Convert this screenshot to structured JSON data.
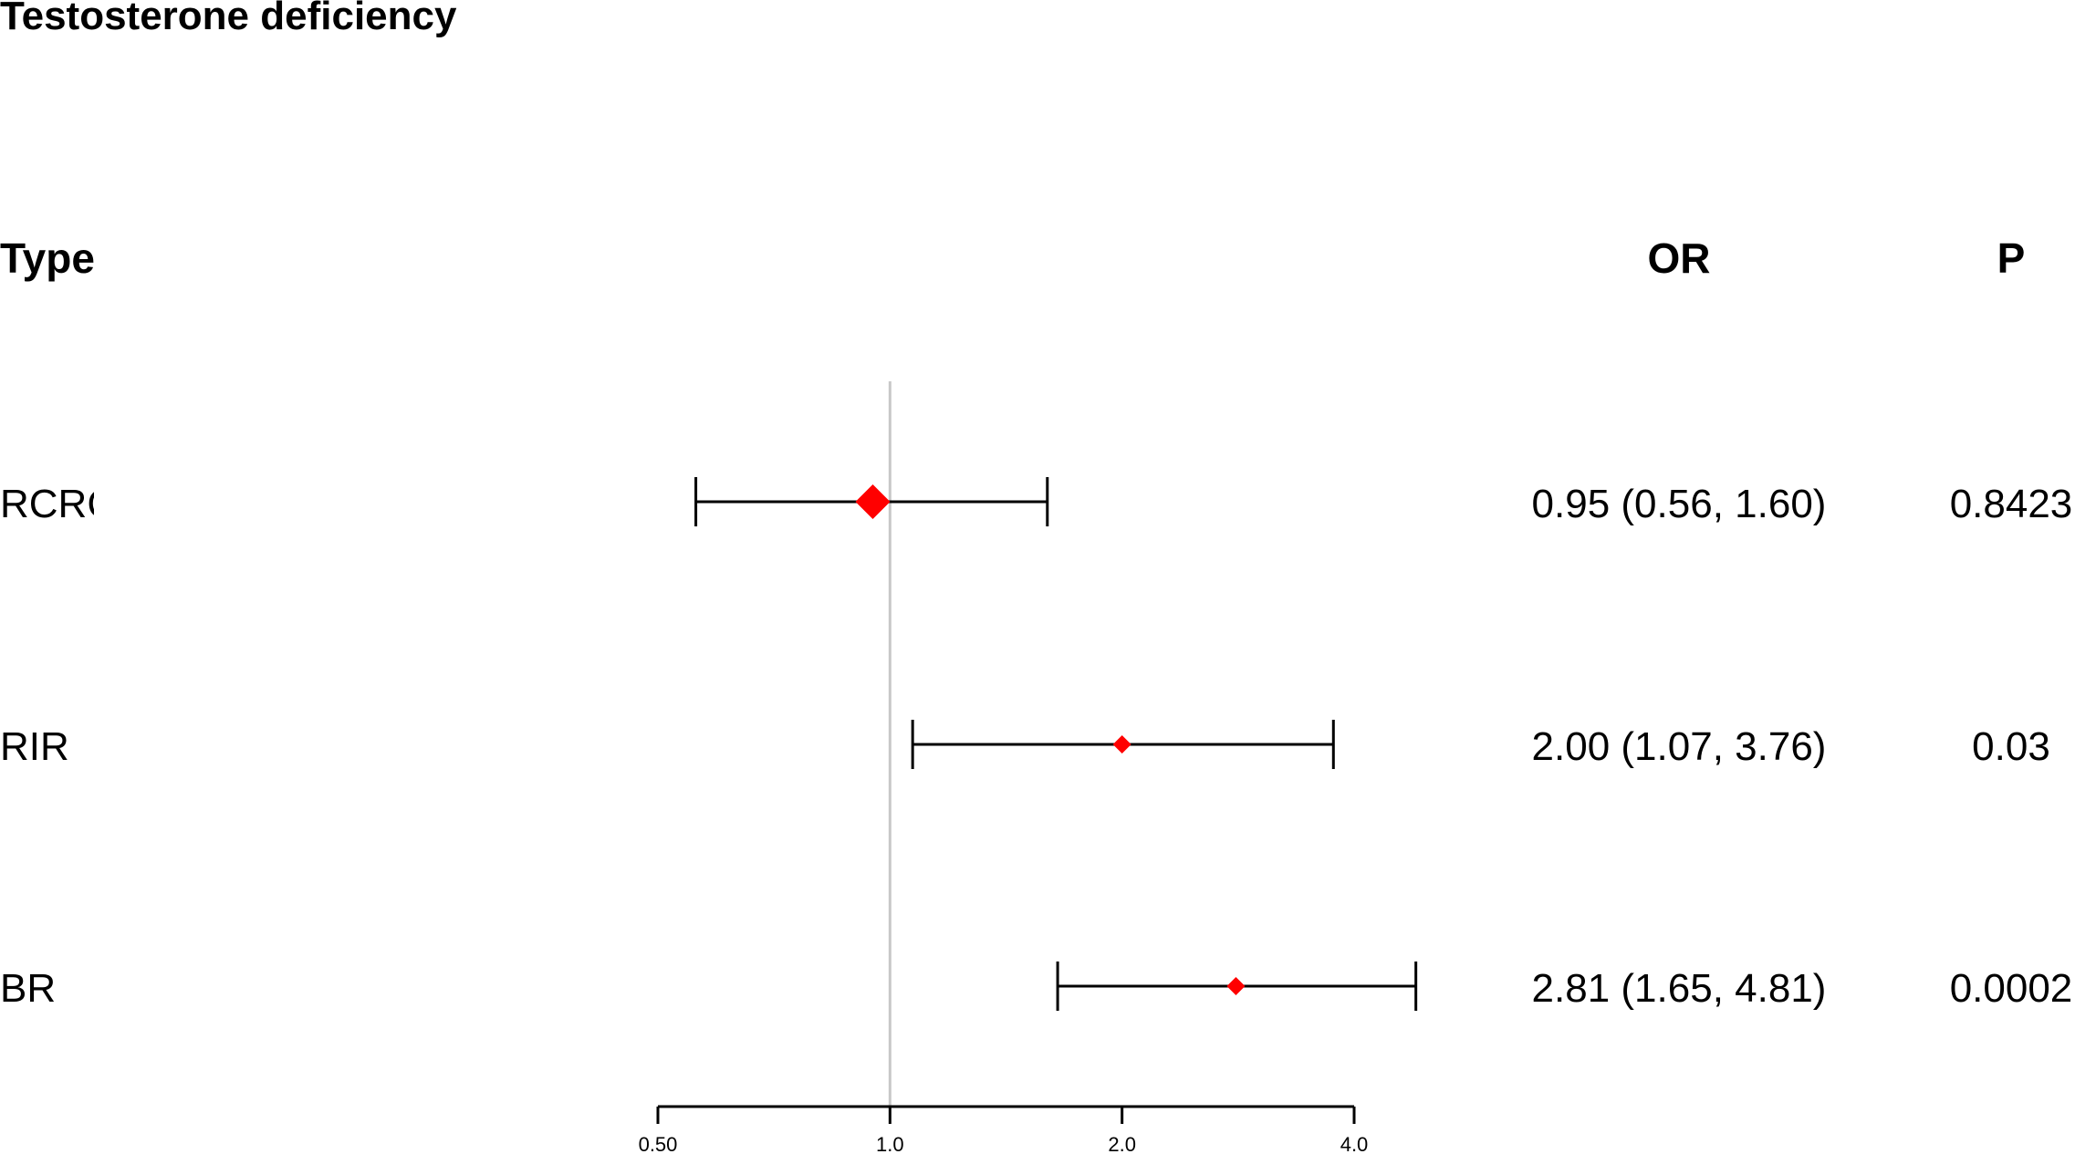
{
  "chart_data": {
    "type": "forest",
    "title": "Testosterone deficiency",
    "headers": {
      "label": "Type",
      "or": "OR",
      "p": "P"
    },
    "rows": [
      {
        "label": "RCRC",
        "or": 0.95,
        "lower": 0.56,
        "upper": 1.6,
        "or_text": "0.95 (0.56, 1.60)",
        "p_text": "0.8423",
        "weight": "large"
      },
      {
        "label": "RIR",
        "or": 2.0,
        "lower": 1.07,
        "upper": 3.76,
        "or_text": "2.00 (1.07, 3.76)",
        "p_text": "0.03",
        "weight": "small"
      },
      {
        "label": "BR",
        "or": 2.81,
        "lower": 1.65,
        "upper": 4.81,
        "or_text": "2.81 (1.65, 4.81)",
        "p_text": "0.0002",
        "weight": "small"
      }
    ],
    "x_axis": {
      "scale": "log2",
      "ticks": [
        0.5,
        1.0,
        2.0,
        4.0
      ],
      "tick_labels": [
        "0.50",
        "1.0",
        "2.0",
        "4.0"
      ],
      "reference": 1.0
    },
    "colors": {
      "point": "#ff0000",
      "line": "#000000",
      "reference": "#c8c8c8"
    }
  }
}
